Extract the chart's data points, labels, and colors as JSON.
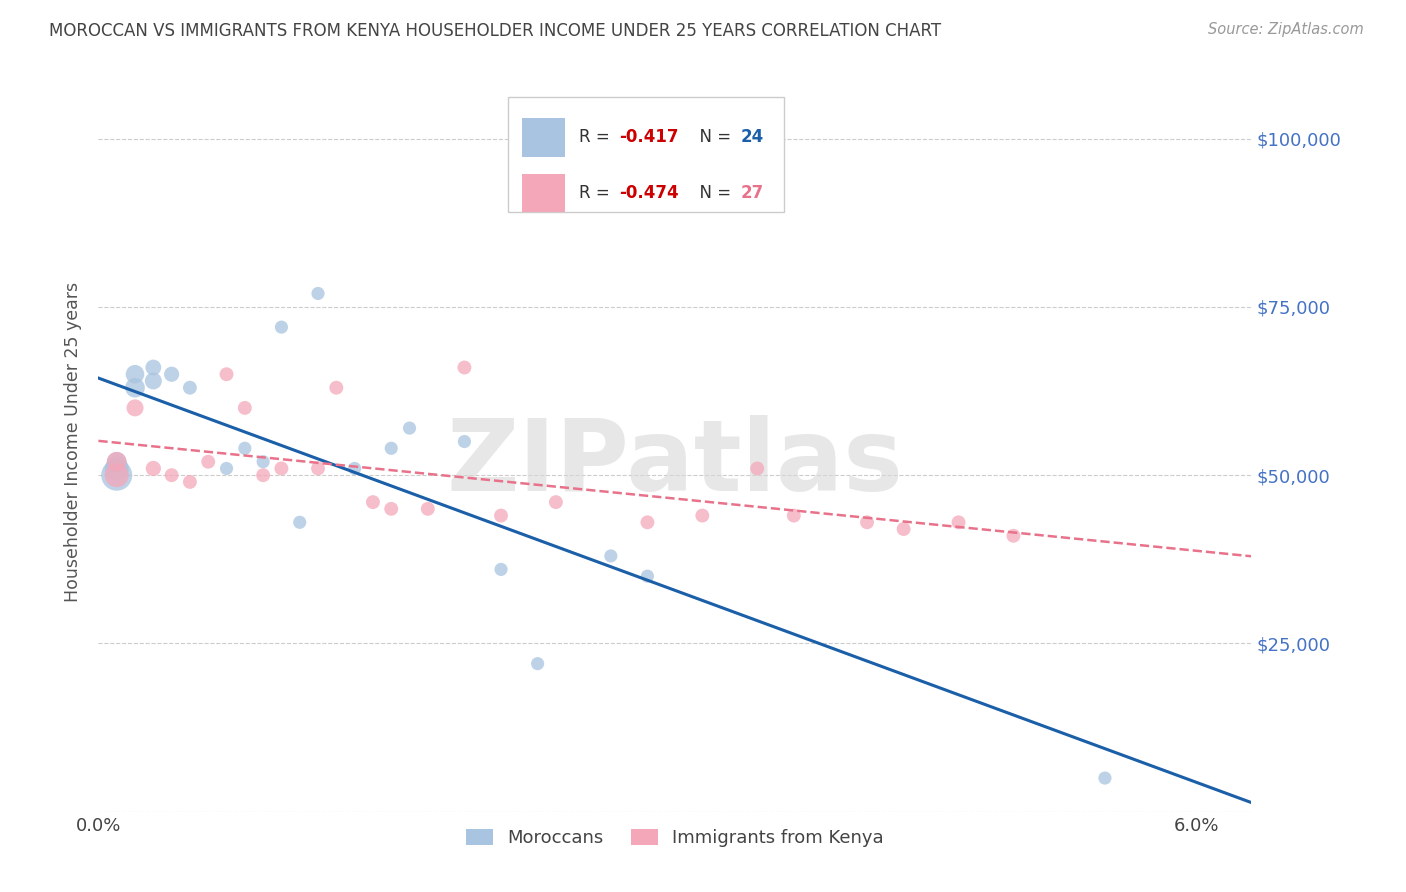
{
  "title": "MOROCCAN VS IMMIGRANTS FROM KENYA HOUSEHOLDER INCOME UNDER 25 YEARS CORRELATION CHART",
  "source": "Source: ZipAtlas.com",
  "ylabel": "Householder Income Under 25 years",
  "xlim": [
    0.0,
    0.063
  ],
  "ylim": [
    0,
    110000
  ],
  "yticks": [
    0,
    25000,
    50000,
    75000,
    100000
  ],
  "ytick_labels": [
    "",
    "$25,000",
    "$50,000",
    "$75,000",
    "$100,000"
  ],
  "xtick_positions": [
    0.0,
    0.01,
    0.02,
    0.03,
    0.04,
    0.05,
    0.06
  ],
  "xtick_labels": [
    "0.0%",
    "",
    "",
    "",
    "",
    "",
    "6.0%"
  ],
  "moroccan_x": [
    0.001,
    0.001,
    0.001,
    0.002,
    0.002,
    0.003,
    0.003,
    0.004,
    0.005,
    0.007,
    0.008,
    0.009,
    0.01,
    0.011,
    0.012,
    0.014,
    0.016,
    0.017,
    0.02,
    0.022,
    0.024,
    0.028,
    0.03,
    0.055
  ],
  "moroccan_y": [
    50000,
    51000,
    52000,
    63000,
    65000,
    64000,
    66000,
    65000,
    63000,
    51000,
    54000,
    52000,
    72000,
    43000,
    77000,
    51000,
    54000,
    57000,
    55000,
    36000,
    22000,
    38000,
    35000,
    5000
  ],
  "moroccan_size": [
    500,
    300,
    200,
    200,
    180,
    150,
    130,
    120,
    100,
    90,
    90,
    90,
    90,
    90,
    90,
    90,
    90,
    90,
    90,
    90,
    90,
    90,
    90,
    90
  ],
  "kenya_x": [
    0.001,
    0.001,
    0.002,
    0.003,
    0.004,
    0.005,
    0.006,
    0.007,
    0.008,
    0.009,
    0.01,
    0.012,
    0.013,
    0.015,
    0.016,
    0.018,
    0.02,
    0.022,
    0.025,
    0.03,
    0.033,
    0.036,
    0.038,
    0.042,
    0.044,
    0.047,
    0.05
  ],
  "kenya_y": [
    50000,
    52000,
    60000,
    51000,
    50000,
    49000,
    52000,
    65000,
    60000,
    50000,
    51000,
    51000,
    63000,
    46000,
    45000,
    45000,
    66000,
    44000,
    46000,
    43000,
    44000,
    51000,
    44000,
    43000,
    42000,
    43000,
    41000
  ],
  "kenya_size": [
    300,
    200,
    150,
    120,
    100,
    100,
    100,
    100,
    100,
    100,
    100,
    100,
    100,
    100,
    100,
    100,
    100,
    100,
    100,
    100,
    100,
    100,
    100,
    100,
    100,
    100,
    100
  ],
  "moroccan_color": "#a8c4e0",
  "kenya_color": "#f4a7b9",
  "moroccan_line_color": "#1a5fa8",
  "kenya_line_color": "#e8728a",
  "grid_color": "#cccccc",
  "background_color": "#ffffff",
  "title_color": "#444444",
  "axis_label_color": "#555555",
  "right_label_color": "#4472c4",
  "legend_R_moroccan": "-0.417",
  "legend_N_moroccan": "24",
  "legend_R_kenya": "-0.474",
  "legend_N_kenya": "27",
  "watermark": "ZIPatlas",
  "watermark_color": "#d8d8d8"
}
